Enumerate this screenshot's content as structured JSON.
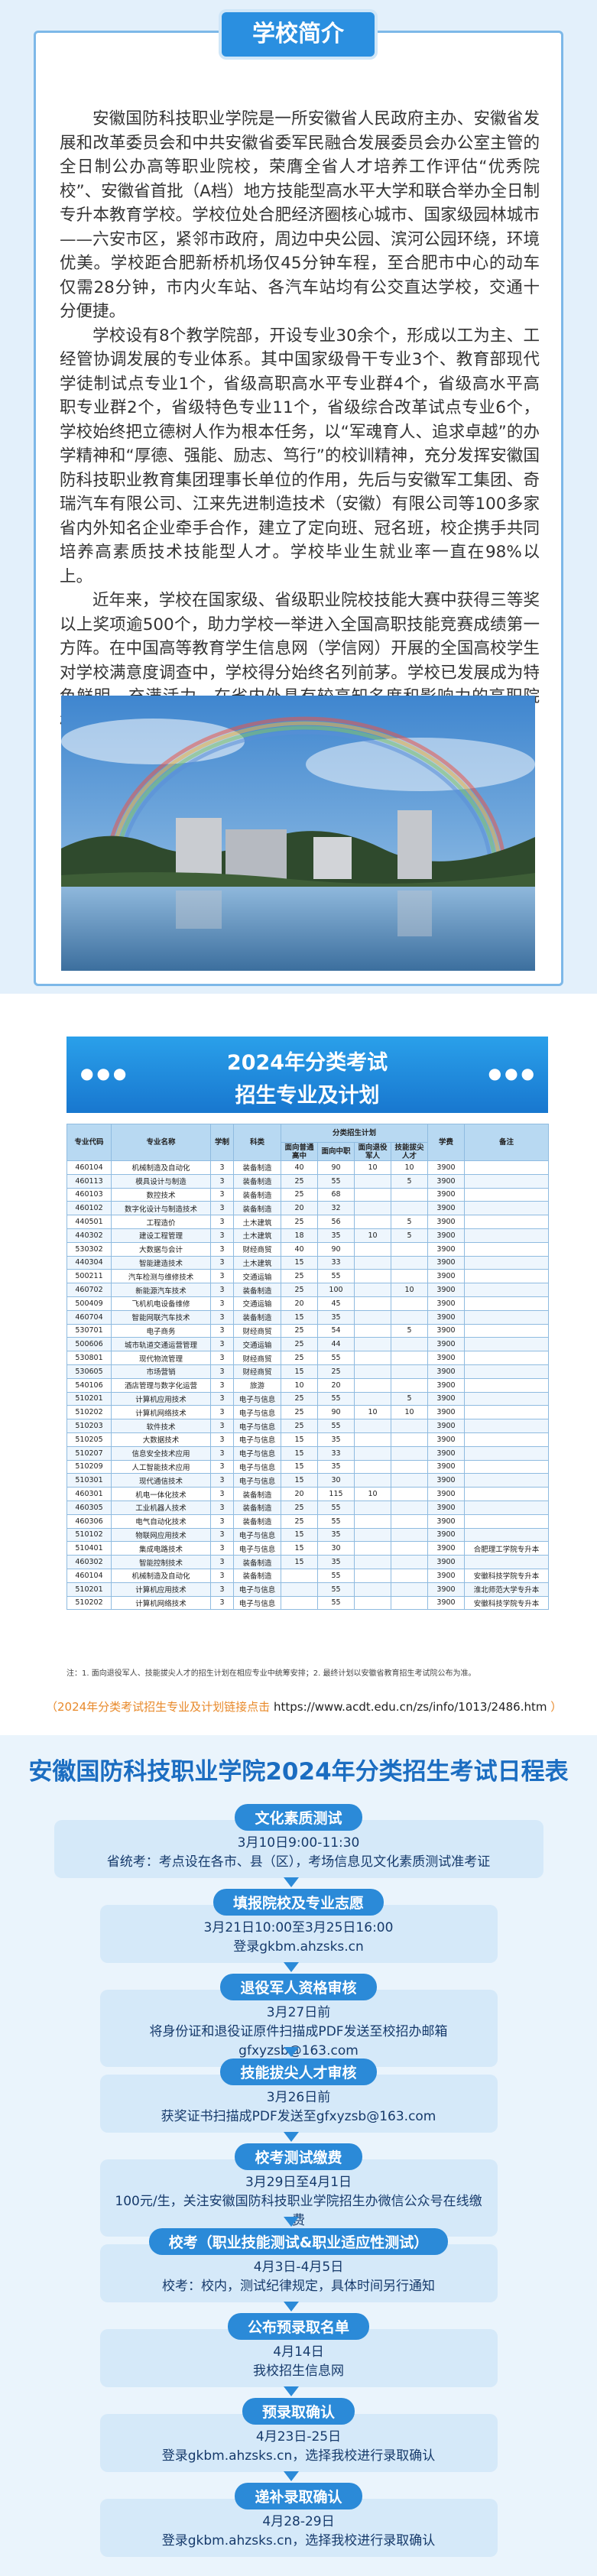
{
  "intro": {
    "title": "学校简介",
    "paragraphs": [
      "安徽国防科技职业学院是一所安徽省人民政府主办、安徽省发展和改革委员会和中共安徽省委军民融合发展委员会办公室主管的全日制公办高等职业院校，荣膺全省人才培养工作评估“优秀院校”、安徽省首批（A档）地方技能型高水平大学和联合举办全日制专升本教育学校。学校位处合肥经济圈核心城市、国家级园林城市——六安市区，紧邻市政府，周边中央公园、滨河公园环绕，环境优美。学校距合肥新桥机场仅45分钟车程，至合肥市中心的动车仅需28分钟，市内火车站、各汽车站均有公交直达学校，交通十分便捷。",
      "学校设有8个教学院部，开设专业30余个，形成以工为主、工经管协调发展的专业体系。其中国家级骨干专业3个、教育部现代学徒制试点专业1个，省级高职高水平专业群4个，省级高水平高职专业群2个，省级特色专业11个，省级综合改革试点专业6个，学校始终把立德树人作为根本任务，以“军魂育人、追求卓越”的办学精神和“厚德、强能、励志、笃行”的校训精神，充分发挥安徽国防科技职业教育集团理事长单位的作用，先后与安徽军工集团、奇瑞汽车有限公司、江来先进制造技术（安徽）有限公司等100多家省内外知名企业牵手合作，建立了定向班、冠名班，校企携手共同培养高素质技术技能型人才。学校毕业生就业率一直在98%以上。",
      "近年来，学校在国家级、省级职业院校技能大赛中获得三等奖以上奖项逾500个，助力学校一举进入全国高职技能竞赛成绩第一方阵。在中国高等教育学生信息网（学信网）开展的全国高校学生对学校满意度调查中，学校得分始终名列前茅。学校已发展成为特色鲜明、充满活力、在省内外具有较高知名度和影响力的高职院校。"
    ]
  },
  "plan": {
    "title_line1": "2024年分类考试",
    "title_line2": "招生专业及计划",
    "table": {
      "group_header": "分类招生计划",
      "headers": [
        "专业代码",
        "专业名称",
        "学制",
        "科类",
        "面向普通高中",
        "面向中职",
        "面向退役军人",
        "技能拔尖人才",
        "学费",
        "备注"
      ],
      "rows": [
        [
          "460104",
          "机械制造及自动化",
          "3",
          "装备制造",
          "40",
          "90",
          "10",
          "10",
          "3900",
          null
        ],
        [
          "460113",
          "模具设计与制造",
          "3",
          "装备制造",
          "25",
          "55",
          null,
          "5",
          "3900",
          null
        ],
        [
          "460103",
          "数控技术",
          "3",
          "装备制造",
          "25",
          "68",
          null,
          null,
          "3900",
          null
        ],
        [
          "460102",
          "数字化设计与制造技术",
          "3",
          "装备制造",
          "20",
          "32",
          null,
          null,
          "3900",
          null
        ],
        [
          "440501",
          "工程造价",
          "3",
          "土木建筑",
          "25",
          "56",
          null,
          "5",
          "3900",
          null
        ],
        [
          "440302",
          "建设工程管理",
          "3",
          "土木建筑",
          "18",
          "35",
          "10",
          "5",
          "3900",
          null
        ],
        [
          "530302",
          "大数据与会计",
          "3",
          "财经商贸",
          "40",
          "90",
          null,
          null,
          "3900",
          null
        ],
        [
          "440304",
          "智能建造技术",
          "3",
          "土木建筑",
          "15",
          "33",
          null,
          null,
          "3900",
          null
        ],
        [
          "500211",
          "汽车检测与维修技术",
          "3",
          "交通运输",
          "25",
          "55",
          null,
          null,
          "3900",
          null
        ],
        [
          "460702",
          "新能源汽车技术",
          "3",
          "装备制造",
          "25",
          "100",
          null,
          "10",
          "3900",
          null
        ],
        [
          "500409",
          "飞机机电设备维修",
          "3",
          "交通运输",
          "20",
          "45",
          null,
          null,
          "3900",
          null
        ],
        [
          "460704",
          "智能网联汽车技术",
          "3",
          "装备制造",
          "15",
          "35",
          null,
          null,
          "3900",
          null
        ],
        [
          "530701",
          "电子商务",
          "3",
          "财经商贸",
          "25",
          "54",
          null,
          "5",
          "3900",
          null
        ],
        [
          "500606",
          "城市轨道交通运营管理",
          "3",
          "交通运输",
          "25",
          "44",
          null,
          null,
          "3900",
          null
        ],
        [
          "530801",
          "现代物流管理",
          "3",
          "财经商贸",
          "25",
          "55",
          null,
          null,
          "3900",
          null
        ],
        [
          "530605",
          "市场营销",
          "3",
          "财经商贸",
          "15",
          "25",
          null,
          null,
          "3900",
          null
        ],
        [
          "540106",
          "酒店管理与数字化运营",
          "3",
          "旅游",
          "10",
          "20",
          null,
          null,
          "3900",
          null
        ],
        [
          "510201",
          "计算机应用技术",
          "3",
          "电子与信息",
          "25",
          "55",
          null,
          "5",
          "3900",
          null
        ],
        [
          "510202",
          "计算机网络技术",
          "3",
          "电子与信息",
          "25",
          "90",
          "10",
          "10",
          "3900",
          null
        ],
        [
          "510203",
          "软件技术",
          "3",
          "电子与信息",
          "25",
          "55",
          null,
          null,
          "3900",
          null
        ],
        [
          "510205",
          "大数据技术",
          "3",
          "电子与信息",
          "15",
          "35",
          null,
          null,
          "3900",
          null
        ],
        [
          "510207",
          "信息安全技术应用",
          "3",
          "电子与信息",
          "15",
          "33",
          null,
          null,
          "3900",
          null
        ],
        [
          "510209",
          "人工智能技术应用",
          "3",
          "电子与信息",
          "15",
          "35",
          null,
          null,
          "3900",
          null
        ],
        [
          "510301",
          "现代通信技术",
          "3",
          "电子与信息",
          "15",
          "30",
          null,
          null,
          "3900",
          null
        ],
        [
          "460301",
          "机电一体化技术",
          "3",
          "装备制造",
          "20",
          "115",
          "10",
          null,
          "3900",
          null
        ],
        [
          "460305",
          "工业机器人技术",
          "3",
          "装备制造",
          "25",
          "55",
          null,
          null,
          "3900",
          null
        ],
        [
          "460306",
          "电气自动化技术",
          "3",
          "装备制造",
          "25",
          "55",
          null,
          null,
          "3900",
          null
        ],
        [
          "510102",
          "物联网应用技术",
          "3",
          "电子与信息",
          "15",
          "35",
          null,
          null,
          "3900",
          null
        ],
        [
          "510401",
          "集成电路技术",
          "3",
          "电子与信息",
          "15",
          "30",
          null,
          null,
          "3900",
          "合肥理工学院专升本"
        ],
        [
          "460302",
          "智能控制技术",
          "3",
          "装备制造",
          "15",
          "35",
          null,
          null,
          "3900",
          null
        ],
        [
          "460104",
          "机械制造及自动化",
          "3",
          "装备制造",
          null,
          "55",
          null,
          null,
          "3900",
          "安徽科技学院专升本"
        ],
        [
          "510201",
          "计算机应用技术",
          "3",
          "电子与信息",
          null,
          "55",
          null,
          null,
          "3900",
          "淮北师范大学专升本"
        ],
        [
          "510202",
          "计算机网络技术",
          "3",
          "电子与信息",
          null,
          "55",
          null,
          null,
          "3900",
          "安徽科技学院专升本"
        ]
      ]
    },
    "note": "注：1. 面向退役军人、技能拔尖人才的招生计划在相应专业中统筹安排；2. 最终计划以安徽省教育招生考试院公布为准。",
    "link_label": "（2024年分类考试招生专业及计划链接点击",
    "link_url": "https://www.acdt.edu.cn/zs/info/1013/2486.htm",
    "link_close": "）"
  },
  "schedule": {
    "title": "安徽国防科技职业学院2024年分类招生考试日程表",
    "steps": [
      {
        "name": "文化素质测试",
        "date": "3月10日9:00-11:30",
        "detail": "省统考：考点设在各市、县（区），考场信息见文化素质测试准考证"
      },
      {
        "name": "填报院校及专业志愿",
        "date": "3月21日10:00至3月25日16:00",
        "detail": "登录gkbm.ahzsks.cn"
      },
      {
        "name": "退役军人资格审核",
        "date": "3月27日前",
        "detail": "将身份证和退役证原件扫描成PDF发送至校招办邮箱gfxyzsb@163.com"
      },
      {
        "name": "技能拔尖人才审核",
        "date": "3月26日前",
        "detail": "获奖证书扫描成PDF发送至gfxyzsb@163.com"
      },
      {
        "name": "校考测试缴费",
        "date": "3月29日至4月1日",
        "detail": "100元/生，关注安徽国防科技职业学院招生办微信公众号在线缴费"
      },
      {
        "name": "校考（职业技能测试&职业适应性测试）",
        "date": "4月3日-4月5日",
        "detail": "校考：校内，测试纪律规定，具体时间另行通知"
      },
      {
        "name": "公布预录取名单",
        "date": "4月14日",
        "detail": "我校招生信息网"
      },
      {
        "name": "预录取确认",
        "date": "4月23日-25日",
        "detail": "登录gkbm.ahzsks.cn，选择我校进行录取确认"
      },
      {
        "name": "递补录取确认",
        "date": "4月28-29日",
        "detail": "登录gkbm.ahzsks.cn，选择我校进行录取确认"
      }
    ]
  }
}
